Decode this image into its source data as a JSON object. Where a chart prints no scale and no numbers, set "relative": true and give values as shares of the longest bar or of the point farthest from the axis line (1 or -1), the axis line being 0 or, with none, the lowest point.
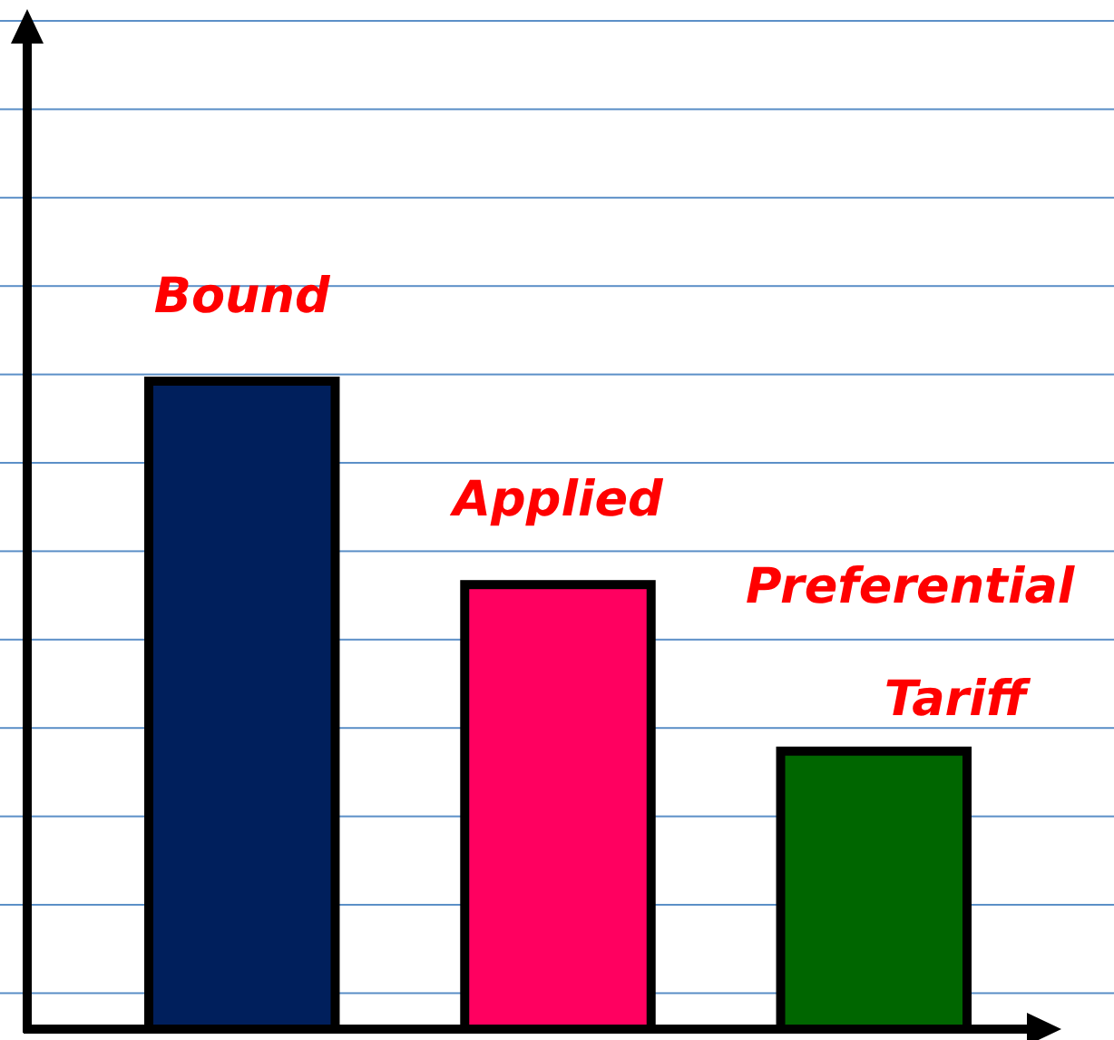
{
  "chart_data": {
    "type": "bar",
    "relative": true,
    "categories": [
      "Bound",
      "Applied",
      "Preferential Tariff"
    ],
    "values": [
      1,
      0.686,
      0.429
    ],
    "colors": [
      "#001f5c",
      "#ff0060",
      "#006600"
    ]
  }
}
